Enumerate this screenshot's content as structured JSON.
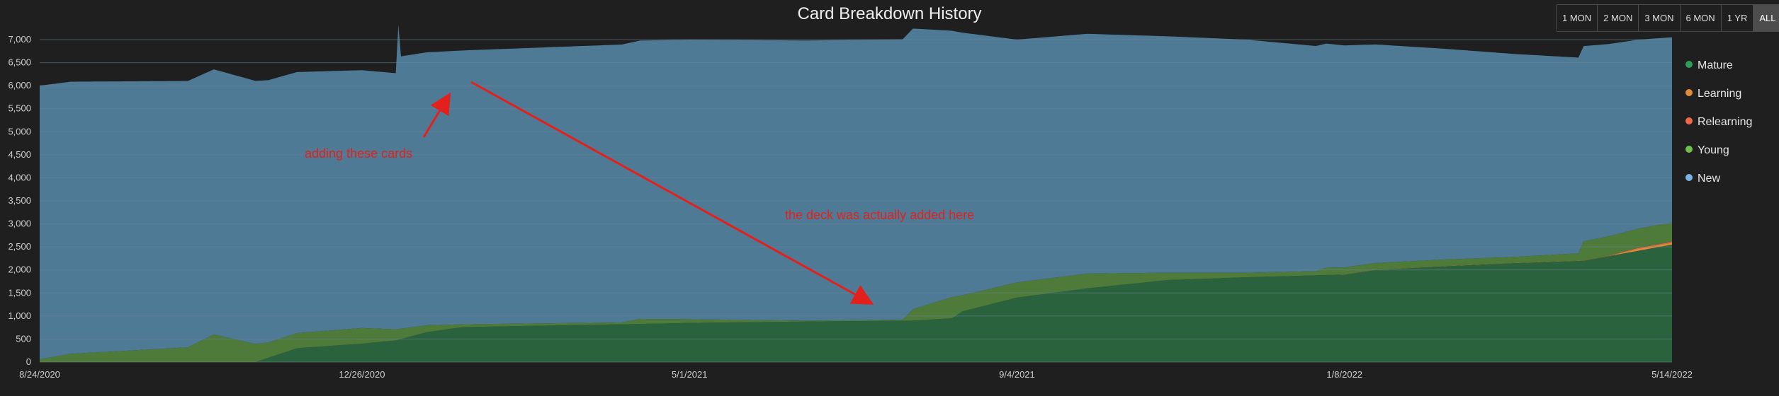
{
  "chart_data": {
    "type": "area",
    "title": "Card Breakdown History",
    "xlabel": "",
    "ylabel": "",
    "ylim": [
      0,
      7000
    ],
    "xlim": [
      "2020-08-24",
      "2022-05-14"
    ],
    "yticks": [
      0,
      500,
      1000,
      1500,
      2000,
      2500,
      3000,
      3500,
      4000,
      4500,
      5000,
      5500,
      6000,
      6500,
      7000
    ],
    "ytick_labels": [
      "0",
      "500",
      "1,000",
      "1,500",
      "2,000",
      "2,500",
      "3,000",
      "3,500",
      "4,000",
      "4,500",
      "5,000",
      "5,500",
      "6,000",
      "6,500",
      "7,000"
    ],
    "xticks": [
      "2020-08-24",
      "2020-12-26",
      "2021-05-01",
      "2021-09-04",
      "2022-01-08",
      "2022-05-14"
    ],
    "xtick_labels": [
      "8/24/2020",
      "12/26/2020",
      "5/1/2021",
      "9/4/2021",
      "1/8/2022",
      "5/14/2022"
    ],
    "grid": true,
    "stacked": true,
    "legend_position": "right",
    "series": [
      {
        "name": "Mature",
        "color": "#2a623d",
        "points": [
          [
            "2020-08-24",
            0
          ],
          [
            "2020-11-15",
            0
          ],
          [
            "2020-12-01",
            300
          ],
          [
            "2020-12-26",
            400
          ],
          [
            "2021-01-08",
            470
          ],
          [
            "2021-01-20",
            650
          ],
          [
            "2021-02-03",
            760
          ],
          [
            "2021-03-15",
            800
          ],
          [
            "2021-04-15",
            830
          ],
          [
            "2021-05-01",
            850
          ],
          [
            "2021-06-15",
            880
          ],
          [
            "2021-07-26",
            900
          ],
          [
            "2021-08-10",
            950
          ],
          [
            "2021-08-14",
            1100
          ],
          [
            "2021-09-04",
            1400
          ],
          [
            "2021-10-01",
            1600
          ],
          [
            "2021-11-01",
            1780
          ],
          [
            "2021-12-01",
            1840
          ],
          [
            "2022-01-08",
            1900
          ],
          [
            "2022-01-20",
            2000
          ],
          [
            "2022-02-15",
            2080
          ],
          [
            "2022-03-15",
            2150
          ],
          [
            "2022-04-10",
            2200
          ],
          [
            "2022-05-14",
            2550
          ]
        ]
      },
      {
        "name": "Learning",
        "color": "#e08c3a",
        "points": [
          [
            "2020-08-24",
            0
          ],
          [
            "2021-12-31",
            0
          ],
          [
            "2022-01-08",
            5
          ],
          [
            "2022-04-20",
            5
          ],
          [
            "2022-05-01",
            40
          ],
          [
            "2022-05-14",
            40
          ]
        ]
      },
      {
        "name": "Relearning",
        "color": "#f06a4a",
        "points": [
          [
            "2020-08-24",
            0
          ],
          [
            "2022-04-15",
            0
          ],
          [
            "2022-05-01",
            20
          ],
          [
            "2022-05-14",
            20
          ]
        ]
      },
      {
        "name": "Young",
        "color": "#4e7a3a",
        "points": [
          [
            "2020-08-24",
            60
          ],
          [
            "2020-09-05",
            180
          ],
          [
            "2020-10-20",
            320
          ],
          [
            "2020-10-30",
            600
          ],
          [
            "2020-11-20",
            330
          ],
          [
            "2020-12-01",
            330
          ],
          [
            "2020-12-26",
            340
          ],
          [
            "2021-01-20",
            150
          ],
          [
            "2021-02-03",
            60
          ],
          [
            "2021-04-05",
            40
          ],
          [
            "2021-04-12",
            110
          ],
          [
            "2021-05-01",
            80
          ],
          [
            "2021-06-15",
            20
          ],
          [
            "2021-07-22",
            20
          ],
          [
            "2021-07-26",
            250
          ],
          [
            "2021-08-10",
            460
          ],
          [
            "2021-08-14",
            350
          ],
          [
            "2021-09-04",
            330
          ],
          [
            "2021-10-01",
            320
          ],
          [
            "2021-11-01",
            160
          ],
          [
            "2021-12-01",
            100
          ],
          [
            "2021-12-28",
            90
          ],
          [
            "2022-01-01",
            160
          ],
          [
            "2022-01-08",
            150
          ],
          [
            "2022-02-15",
            140
          ],
          [
            "2022-03-15",
            130
          ],
          [
            "2022-04-08",
            160
          ],
          [
            "2022-04-10",
            420
          ],
          [
            "2022-05-14",
            420
          ]
        ]
      },
      {
        "name": "New",
        "color": "#4e7a96",
        "points": [
          [
            "2020-08-24",
            5940
          ],
          [
            "2021-01-08",
            5560
          ],
          [
            "2021-01-09",
            6600
          ],
          [
            "2021-01-10",
            5910
          ],
          [
            "2021-05-01",
            6070
          ],
          [
            "2021-07-26",
            6090
          ],
          [
            "2021-09-04",
            5270
          ],
          [
            "2021-12-01",
            5060
          ],
          [
            "2022-05-14",
            4020
          ]
        ]
      }
    ],
    "annotations": [
      {
        "text": "adding these cards",
        "color": "#e3201b"
      },
      {
        "text": "the deck was actually added here",
        "color": "#e3201b"
      }
    ]
  },
  "range_buttons": [
    "1 MON",
    "2 MON",
    "3 MON",
    "6 MON",
    "1 YR",
    "ALL"
  ],
  "active_range": "ALL",
  "colors": {
    "background": "#1f1f1f",
    "grid": "#6c8798",
    "annotation": "#e3201b"
  }
}
